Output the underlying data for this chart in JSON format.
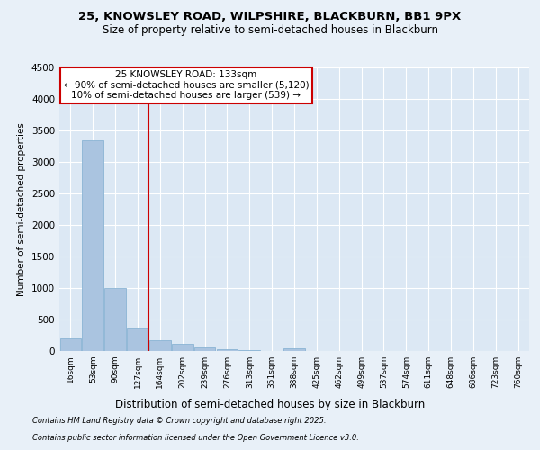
{
  "title1": "25, KNOWSLEY ROAD, WILPSHIRE, BLACKBURN, BB1 9PX",
  "title2": "Size of property relative to semi-detached houses in Blackburn",
  "xlabel": "Distribution of semi-detached houses by size in Blackburn",
  "ylabel": "Number of semi-detached properties",
  "categories": [
    "16sqm",
    "53sqm",
    "90sqm",
    "127sqm",
    "164sqm",
    "202sqm",
    "239sqm",
    "276sqm",
    "313sqm",
    "351sqm",
    "388sqm",
    "425sqm",
    "462sqm",
    "499sqm",
    "537sqm",
    "574sqm",
    "611sqm",
    "648sqm",
    "686sqm",
    "723sqm",
    "760sqm"
  ],
  "values": [
    195,
    3340,
    1000,
    375,
    165,
    110,
    60,
    35,
    18,
    5,
    50,
    0,
    0,
    0,
    0,
    0,
    0,
    0,
    0,
    0,
    0
  ],
  "bar_color": "#aac4e0",
  "bar_edge_color": "#8ab4d4",
  "vline_x": 3.5,
  "vline_color": "#cc0000",
  "annotation_box_color": "#cc0000",
  "property_label": "25 KNOWSLEY ROAD: 133sqm",
  "annotation_line1": "← 90% of semi-detached houses are smaller (5,120)",
  "annotation_line2": "10% of semi-detached houses are larger (539) →",
  "ylim": [
    0,
    4500
  ],
  "yticks": [
    0,
    500,
    1000,
    1500,
    2000,
    2500,
    3000,
    3500,
    4000,
    4500
  ],
  "footnote1": "Contains HM Land Registry data © Crown copyright and database right 2025.",
  "footnote2": "Contains public sector information licensed under the Open Government Licence v3.0.",
  "bg_color": "#e8f0f8",
  "plot_bg_color": "#dce8f4",
  "title1_fontsize": 9.5,
  "title2_fontsize": 8.5,
  "ylabel_fontsize": 7.5,
  "xlabel_fontsize": 8.5,
  "ytick_fontsize": 7.5,
  "xtick_fontsize": 6.5,
  "annot_fontsize": 7.5,
  "footnote_fontsize": 6.0
}
